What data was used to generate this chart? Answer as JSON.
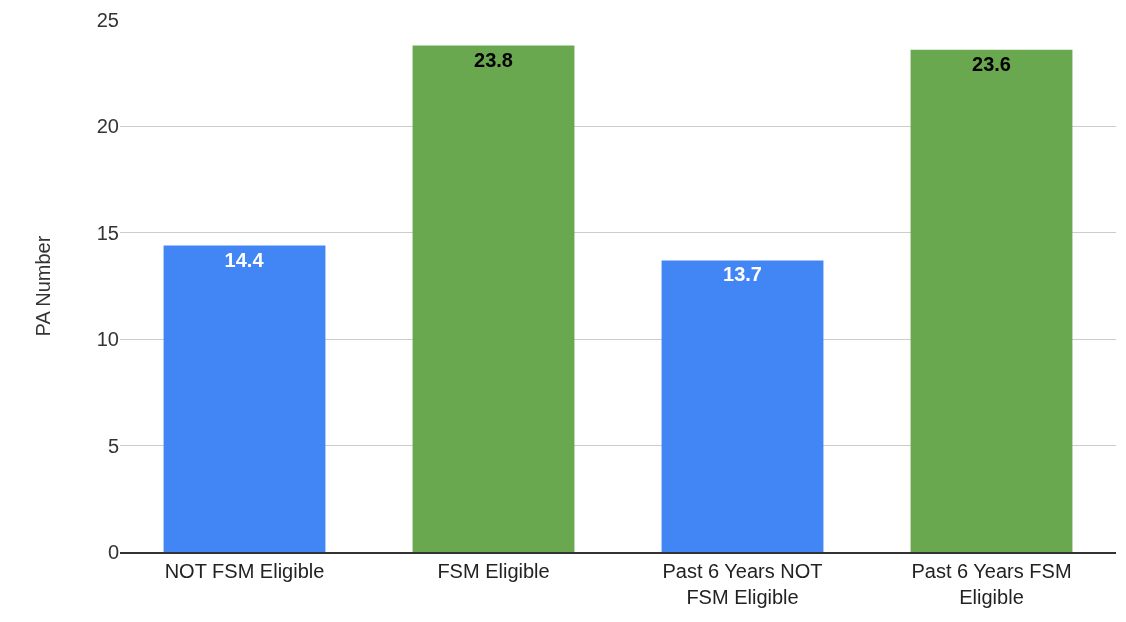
{
  "chart_data": {
    "type": "bar",
    "ylabel": "PA Number",
    "categories": [
      "NOT FSM Eligible",
      "FSM Eligible",
      "Past 6 Years NOT FSM Eligible",
      "Past 6 Years FSM Eligible"
    ],
    "values": [
      14.4,
      23.8,
      13.7,
      23.6
    ],
    "colors": [
      "#4285f4",
      "#6aa84f",
      "#4285f4",
      "#6aa84f"
    ],
    "ylim": [
      0,
      25
    ],
    "yticks": [
      0,
      5,
      10,
      15,
      20,
      25
    ],
    "grid": "y",
    "data_labels": true
  }
}
